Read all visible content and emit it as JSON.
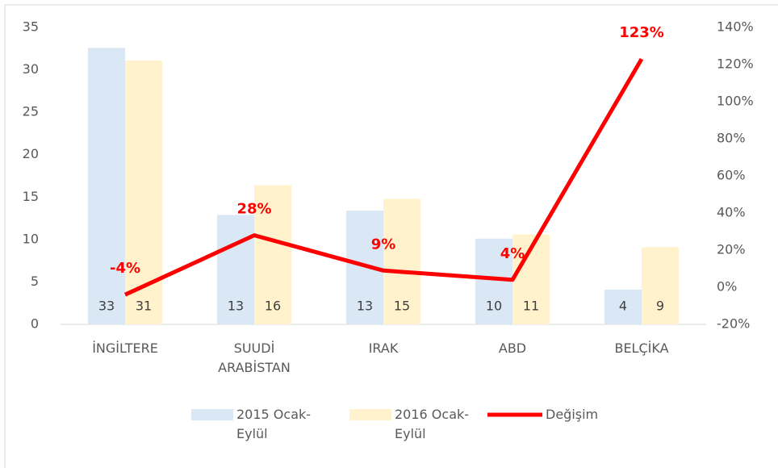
{
  "chart_data": {
    "type": "bar-line",
    "categories": [
      "İNGİLTERE",
      "SUUDİ ARABİSTAN",
      "IRAK",
      "ABD",
      "BELÇİKA"
    ],
    "series": [
      {
        "name": "2015 Ocak-Eylül",
        "type": "bar",
        "color": "#dae8f6",
        "values": [
          32.6,
          12.9,
          13.4,
          10.1,
          4.1
        ],
        "value_labels": [
          "33",
          "13",
          "13",
          "10",
          "4"
        ]
      },
      {
        "name": "2016 Ocak-Eylül",
        "type": "bar",
        "color": "#fff2cc",
        "values": [
          31.1,
          16.4,
          14.8,
          10.6,
          9.1
        ],
        "value_labels": [
          "31",
          "16",
          "15",
          "11",
          "9"
        ]
      },
      {
        "name": "Değişim",
        "type": "line",
        "axis": "y2",
        "color": "#ff0000",
        "values": [
          -4,
          28,
          9,
          4,
          123
        ],
        "value_labels": [
          "-4%",
          "28%",
          "9%",
          "4%",
          "123%"
        ]
      }
    ],
    "ylim": [
      0,
      35
    ],
    "yticks": [
      0,
      5,
      10,
      15,
      20,
      25,
      30,
      35
    ],
    "y2lim": [
      -20,
      140
    ],
    "y2ticks": [
      {
        "value": -20,
        "label": "-20%"
      },
      {
        "value": 0,
        "label": "0%"
      },
      {
        "value": 20,
        "label": "20%"
      },
      {
        "value": 40,
        "label": "40%"
      },
      {
        "value": 60,
        "label": "60%"
      },
      {
        "value": 80,
        "label": "80%"
      },
      {
        "value": 100,
        "label": "100%"
      },
      {
        "value": 120,
        "label": "120%"
      },
      {
        "value": 140,
        "label": "140%"
      }
    ],
    "legend": "bottom"
  }
}
